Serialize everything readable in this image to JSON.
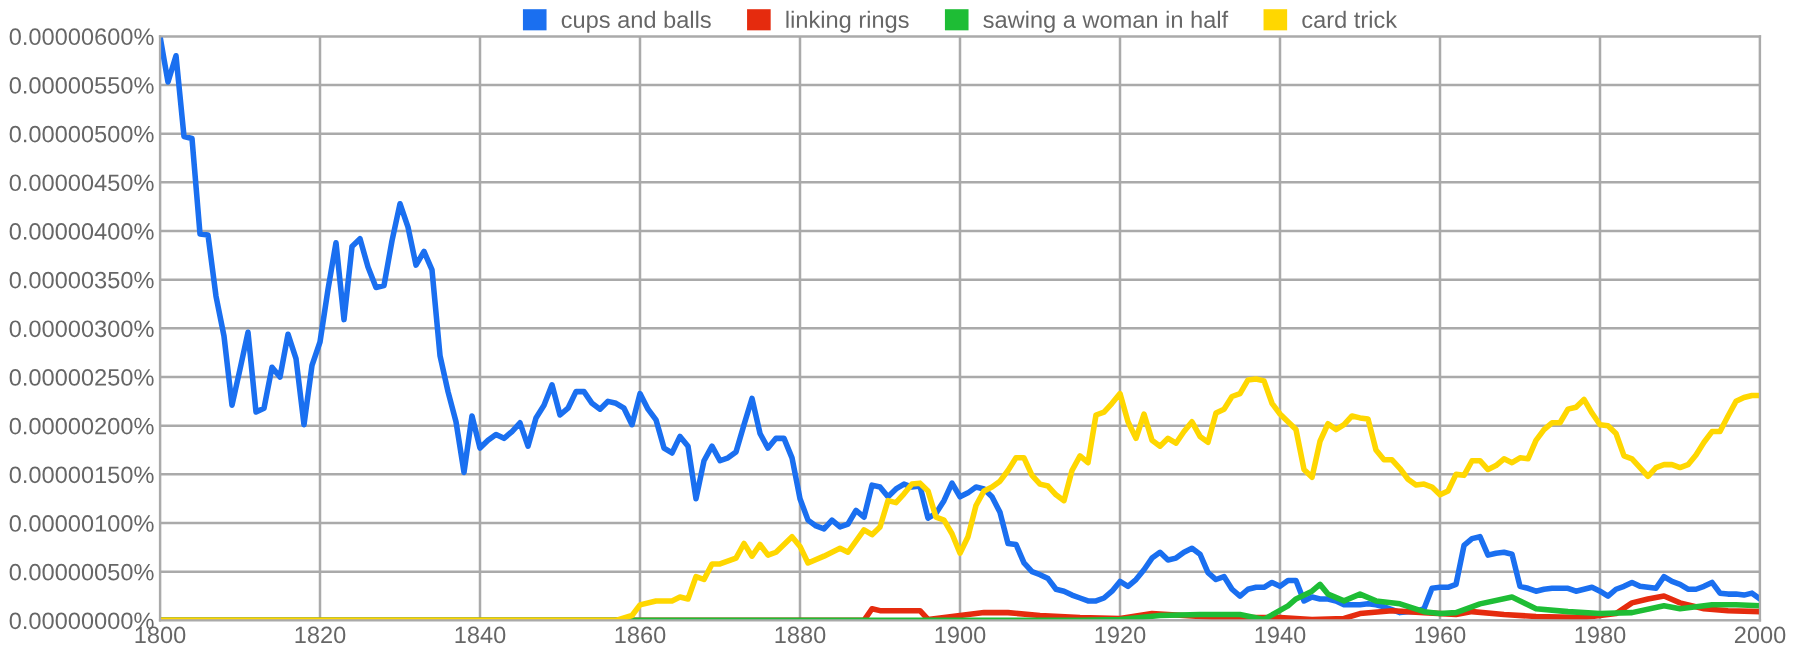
{
  "chart_data": {
    "type": "line",
    "xlim": [
      1800,
      2000
    ],
    "xticks": [
      1800,
      1820,
      1840,
      1860,
      1880,
      1900,
      1920,
      1940,
      1960,
      1980,
      2000
    ],
    "ylim": [
      0,
      6e-06
    ],
    "yticks": [
      {
        "value": 0,
        "label": "0.00000000%"
      },
      {
        "value": 5e-07,
        "label": "0.00000050%"
      },
      {
        "value": 1e-06,
        "label": "0.00000100%"
      },
      {
        "value": 1.5e-06,
        "label": "0.00000150%"
      },
      {
        "value": 2e-06,
        "label": "0.00000200%"
      },
      {
        "value": 2.5e-06,
        "label": "0.00000250%"
      },
      {
        "value": 3e-06,
        "label": "0.00000300%"
      },
      {
        "value": 3.5e-06,
        "label": "0.00000350%"
      },
      {
        "value": 4e-06,
        "label": "0.00000400%"
      },
      {
        "value": 4.5e-06,
        "label": "0.00000450%"
      },
      {
        "value": 5e-06,
        "label": "0.00000500%"
      },
      {
        "value": 5.5e-06,
        "label": "0.00000550%"
      },
      {
        "value": 6e-06,
        "label": "0.00000600%"
      }
    ],
    "grid": true,
    "legend": "top",
    "marker": "none",
    "line_style": "solid",
    "series": [
      {
        "name": "cups and balls",
        "color": "#1a6ff0",
        "x": [
          1800,
          1801,
          1802,
          1803,
          1804,
          1805,
          1806,
          1807,
          1808,
          1809,
          1810,
          1811,
          1812,
          1813,
          1814,
          1815,
          1816,
          1817,
          1818,
          1819,
          1820,
          1821,
          1822,
          1823,
          1824,
          1825,
          1826,
          1827,
          1828,
          1829,
          1830,
          1831,
          1832,
          1833,
          1834,
          1835,
          1836,
          1837,
          1838,
          1839,
          1840,
          1841,
          1842,
          1843,
          1844,
          1845,
          1846,
          1847,
          1848,
          1849,
          1850,
          1851,
          1852,
          1853,
          1854,
          1855,
          1856,
          1857,
          1858,
          1859,
          1860,
          1861,
          1862,
          1863,
          1864,
          1865,
          1866,
          1867,
          1868,
          1869,
          1870,
          1871,
          1872,
          1873,
          1874,
          1875,
          1876,
          1877,
          1878,
          1879,
          1880,
          1881,
          1882,
          1883,
          1884,
          1885,
          1886,
          1887,
          1888,
          1889,
          1890,
          1891,
          1892,
          1893,
          1894,
          1895,
          1896,
          1897,
          1898,
          1899,
          1900,
          1901,
          1902,
          1903,
          1904,
          1905,
          1906,
          1907,
          1908,
          1909,
          1910,
          1911,
          1912,
          1913,
          1914,
          1915,
          1916,
          1917,
          1918,
          1919,
          1920,
          1921,
          1922,
          1923,
          1924,
          1925,
          1926,
          1927,
          1928,
          1929,
          1930,
          1931,
          1932,
          1933,
          1934,
          1935,
          1936,
          1937,
          1938,
          1939,
          1940,
          1941,
          1942,
          1943,
          1944,
          1945,
          1946,
          1947,
          1948,
          1949,
          1950,
          1951,
          1952,
          1953,
          1954,
          1955,
          1956,
          1957,
          1958,
          1959,
          1960,
          1961,
          1962,
          1963,
          1964,
          1965,
          1966,
          1967,
          1968,
          1969,
          1970,
          1971,
          1972,
          1973,
          1974,
          1975,
          1976,
          1977,
          1978,
          1979,
          1980,
          1981,
          1982,
          1983,
          1984,
          1985,
          1986,
          1987,
          1988,
          1989,
          1990,
          1991,
          1992,
          1993,
          1994,
          1995,
          1996,
          1997,
          1998,
          1999,
          2000
        ],
        "values": [
          6e-06,
          5.53e-06,
          5.8e-06,
          4.97e-06,
          4.95e-06,
          3.97e-06,
          3.96e-06,
          3.33e-06,
          2.92e-06,
          2.21e-06,
          2.58e-06,
          2.96e-06,
          2.14e-06,
          2.18e-06,
          2.6e-06,
          2.5e-06,
          2.94e-06,
          2.69e-06,
          2.01e-06,
          2.62e-06,
          2.86e-06,
          3.4e-06,
          3.88e-06,
          3.09e-06,
          3.84e-06,
          3.92e-06,
          3.63e-06,
          3.42e-06,
          3.44e-06,
          3.9e-06,
          4.28e-06,
          4.04e-06,
          3.65e-06,
          3.79e-06,
          3.6e-06,
          2.72e-06,
          2.35e-06,
          2.04e-06,
          1.52e-06,
          2.1e-06,
          1.77e-06,
          1.85e-06,
          1.91e-06,
          1.87e-06,
          1.94e-06,
          2.03e-06,
          1.79e-06,
          2.08e-06,
          2.21e-06,
          2.42e-06,
          2.11e-06,
          2.18e-06,
          2.35e-06,
          2.35e-06,
          2.23e-06,
          2.17e-06,
          2.25e-06,
          2.23e-06,
          2.18e-06,
          2.01e-06,
          2.33e-06,
          2.17e-06,
          2.06e-06,
          1.77e-06,
          1.72e-06,
          1.89e-06,
          1.79e-06,
          1.25e-06,
          1.64e-06,
          1.79e-06,
          1.64e-06,
          1.67e-06,
          1.73e-06,
          2.01e-06,
          2.28e-06,
          1.92e-06,
          1.77e-06,
          1.87e-06,
          1.87e-06,
          1.67e-06,
          1.25e-06,
          1.03e-06,
          9.7e-07,
          9.4e-07,
          1.03e-06,
          9.6e-07,
          9.9e-07,
          1.13e-06,
          1.06e-06,
          1.39e-06,
          1.37e-06,
          1.27e-06,
          1.35e-06,
          1.4e-06,
          1.37e-06,
          1.38e-06,
          1.05e-06,
          1.1e-06,
          1.23e-06,
          1.41e-06,
          1.27e-06,
          1.31e-06,
          1.37e-06,
          1.35e-06,
          1.27e-06,
          1.11e-06,
          7.9e-07,
          7.8e-07,
          5.9e-07,
          5e-07,
          4.7e-07,
          4.3e-07,
          3.2e-07,
          3e-07,
          2.6e-07,
          2.3e-07,
          2e-07,
          2e-07,
          2.3e-07,
          3e-07,
          4e-07,
          3.5e-07,
          4.2e-07,
          5.2e-07,
          6.4e-07,
          7e-07,
          6.2e-07,
          6.4e-07,
          7e-07,
          7.4e-07,
          6.8e-07,
          4.9e-07,
          4.2e-07,
          4.5e-07,
          3.2e-07,
          2.5e-07,
          3.2e-07,
          3.4e-07,
          3.4e-07,
          3.9e-07,
          3.5e-07,
          4.1e-07,
          4.1e-07,
          2e-07,
          2.4e-07,
          2.2e-07,
          2.2e-07,
          2e-07,
          1.6e-07,
          1.6e-07,
          1.6e-07,
          1.7e-07,
          1.6e-07,
          1.4e-07,
          1.1e-07,
          8e-08,
          9e-08,
          9e-08,
          1.2e-07,
          3.3e-07,
          3.4e-07,
          3.4e-07,
          3.7e-07,
          7.7e-07,
          8.4e-07,
          8.6e-07,
          6.7e-07,
          6.9e-07,
          7e-07,
          6.8e-07,
          3.5e-07,
          3.3e-07,
          3e-07,
          3.2e-07,
          3.3e-07,
          3.3e-07,
          3.3e-07,
          3e-07,
          3.2e-07,
          3.4e-07,
          3e-07,
          2.5e-07,
          3.2e-07,
          3.5e-07,
          3.9e-07,
          3.5e-07,
          3.4e-07,
          3.3e-07,
          4.5e-07,
          4e-07,
          3.7e-07,
          3.2e-07,
          3.2e-07,
          3.5e-07,
          3.9e-07,
          2.8e-07,
          2.7e-07,
          2.7e-07,
          2.6e-07,
          2.8e-07,
          2.2e-07
        ]
      },
      {
        "name": "linking rings",
        "color": "#e52b0e",
        "x": [
          1800,
          1888,
          1889,
          1890,
          1895,
          1896,
          1900,
          1903,
          1906,
          1910,
          1915,
          1920,
          1924,
          1928,
          1932,
          1936,
          1940,
          1944,
          1948,
          1950,
          1954,
          1958,
          1962,
          1964,
          1968,
          1972,
          1978,
          1982,
          1984,
          1986,
          1988,
          1990,
          1993,
          1996,
          2000
        ],
        "values": [
          0,
          0,
          1.2e-07,
          1e-07,
          1e-07,
          1e-08,
          5e-08,
          8e-08,
          8e-08,
          5e-08,
          3e-08,
          2e-08,
          7e-08,
          5e-08,
          3e-08,
          3e-08,
          3e-08,
          1e-08,
          2e-08,
          7e-08,
          1e-07,
          8e-08,
          6e-08,
          9e-08,
          6e-08,
          4e-08,
          3e-08,
          7e-08,
          1.8e-07,
          2.2e-07,
          2.5e-07,
          1.8e-07,
          1.2e-07,
          1e-07,
          9e-08
        ]
      },
      {
        "name": "sawing a woman in half",
        "color": "#1ebd35",
        "x": [
          1800,
          1915,
          1920,
          1925,
          1930,
          1935,
          1938,
          1941,
          1942,
          1944,
          1945,
          1946,
          1948,
          1950,
          1952,
          1955,
          1958,
          1960,
          1962,
          1965,
          1969,
          1972,
          1976,
          1980,
          1984,
          1988,
          1990,
          1994,
          1997,
          2000
        ],
        "values": [
          0,
          0,
          1e-08,
          5e-08,
          6e-08,
          6e-08,
          1e-08,
          1.5e-07,
          2.2e-07,
          3e-07,
          3.7e-07,
          2.7e-07,
          2e-07,
          2.7e-07,
          2e-07,
          1.7e-07,
          9e-08,
          7e-08,
          8e-08,
          1.7e-07,
          2.4e-07,
          1.2e-07,
          9e-08,
          7e-08,
          8e-08,
          1.5e-07,
          1.2e-07,
          1.6e-07,
          1.6e-07,
          1.5e-07
        ]
      },
      {
        "name": "card trick",
        "color": "#ffd700",
        "x": [
          1800,
          1857,
          1859,
          1860,
          1862,
          1864,
          1865,
          1866,
          1867,
          1868,
          1869,
          1870,
          1872,
          1873,
          1874,
          1875,
          1876,
          1877,
          1879,
          1880,
          1881,
          1883,
          1885,
          1886,
          1888,
          1889,
          1890,
          1891,
          1892,
          1893,
          1894,
          1895,
          1896,
          1897,
          1898,
          1899,
          1900,
          1901,
          1902,
          1903,
          1904,
          1905,
          1906,
          1907,
          1908,
          1909,
          1910,
          1911,
          1912,
          1913,
          1914,
          1915,
          1916,
          1917,
          1918,
          1919,
          1920,
          1921,
          1922,
          1923,
          1924,
          1925,
          1926,
          1927,
          1928,
          1929,
          1930,
          1931,
          1932,
          1933,
          1934,
          1935,
          1936,
          1937,
          1938,
          1939,
          1940,
          1941,
          1942,
          1943,
          1944,
          1945,
          1946,
          1947,
          1948,
          1949,
          1950,
          1951,
          1952,
          1953,
          1954,
          1955,
          1956,
          1957,
          1958,
          1959,
          1960,
          1961,
          1962,
          1963,
          1964,
          1965,
          1966,
          1967,
          1968,
          1969,
          1970,
          1971,
          1972,
          1973,
          1974,
          1975,
          1976,
          1977,
          1978,
          1979,
          1980,
          1981,
          1982,
          1983,
          1984,
          1985,
          1986,
          1987,
          1988,
          1989,
          1990,
          1991,
          1992,
          1993,
          1994,
          1995,
          1996,
          1997,
          1998,
          1999,
          2000
        ],
        "values": [
          0,
          0,
          5e-08,
          1.6e-07,
          2e-07,
          2e-07,
          2.4e-07,
          2.2e-07,
          4.5e-07,
          4.2e-07,
          5.8e-07,
          5.8e-07,
          6.4e-07,
          7.9e-07,
          6.6e-07,
          7.8e-07,
          6.7e-07,
          7e-07,
          8.6e-07,
          7.6e-07,
          5.9e-07,
          6.6e-07,
          7.4e-07,
          7e-07,
          9.3e-07,
          8.8e-07,
          9.6e-07,
          1.23e-06,
          1.21e-06,
          1.3e-06,
          1.4e-06,
          1.41e-06,
          1.33e-06,
          1.06e-06,
          1.03e-06,
          8.9e-07,
          6.9e-07,
          8.6e-07,
          1.18e-06,
          1.33e-06,
          1.37e-06,
          1.43e-06,
          1.54e-06,
          1.67e-06,
          1.67e-06,
          1.49e-06,
          1.4e-06,
          1.38e-06,
          1.29e-06,
          1.23e-06,
          1.54e-06,
          1.69e-06,
          1.62e-06,
          2.11e-06,
          2.14e-06,
          2.23e-06,
          2.33e-06,
          2.04e-06,
          1.87e-06,
          2.12e-06,
          1.85e-06,
          1.79e-06,
          1.87e-06,
          1.82e-06,
          1.94e-06,
          2.04e-06,
          1.89e-06,
          1.83e-06,
          2.13e-06,
          2.17e-06,
          2.3e-06,
          2.33e-06,
          2.47e-06,
          2.48e-06,
          2.46e-06,
          2.23e-06,
          2.12e-06,
          2.04e-06,
          1.96e-06,
          1.55e-06,
          1.47e-06,
          1.84e-06,
          2.02e-06,
          1.96e-06,
          2.01e-06,
          2.1e-06,
          2.08e-06,
          2.07e-06,
          1.75e-06,
          1.65e-06,
          1.65e-06,
          1.56e-06,
          1.45e-06,
          1.39e-06,
          1.4e-06,
          1.37e-06,
          1.29e-06,
          1.33e-06,
          1.5e-06,
          1.49e-06,
          1.64e-06,
          1.64e-06,
          1.55e-06,
          1.59e-06,
          1.66e-06,
          1.62e-06,
          1.67e-06,
          1.66e-06,
          1.85e-06,
          1.96e-06,
          2.03e-06,
          2.03e-06,
          2.17e-06,
          2.19e-06,
          2.27e-06,
          2.13e-06,
          2.01e-06,
          2e-06,
          1.92e-06,
          1.69e-06,
          1.66e-06,
          1.57e-06,
          1.48e-06,
          1.57e-06,
          1.6e-06,
          1.6e-06,
          1.57e-06,
          1.6e-06,
          1.7e-06,
          1.83e-06,
          1.94e-06,
          1.94e-06,
          2.1e-06,
          2.25e-06,
          2.29e-06,
          2.31e-06,
          2.31e-06
        ]
      }
    ]
  }
}
